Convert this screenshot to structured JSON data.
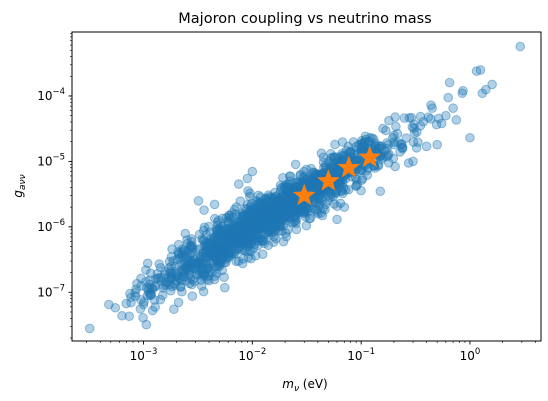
{
  "chart_data": {
    "type": "scatter",
    "title": "Majoron coupling vs neutrino mass",
    "xlabel": {
      "base": "m",
      "sub": "ν",
      "unit": " (eV)"
    },
    "ylabel": {
      "base": "g",
      "sub": "aνν"
    },
    "xscale": "log",
    "yscale": "log",
    "xlim": [
      0.00022,
      4.5
    ],
    "ylim": [
      1.8e-08,
      0.00095
    ],
    "xticks": [
      {
        "value": 0.001,
        "base": "10",
        "exp": "−3"
      },
      {
        "value": 0.01,
        "base": "10",
        "exp": "−2"
      },
      {
        "value": 0.1,
        "base": "10",
        "exp": "−1"
      },
      {
        "value": 1,
        "base": "10",
        "exp": "0"
      }
    ],
    "yticks": [
      {
        "value": 1e-07,
        "base": "10",
        "exp": "−7"
      },
      {
        "value": 1e-06,
        "base": "10",
        "exp": "−6"
      },
      {
        "value": 1e-05,
        "base": "10",
        "exp": "−5"
      },
      {
        "value": 0.0001,
        "base": "10",
        "exp": "−4"
      }
    ],
    "grid": false,
    "legend": "none",
    "series": [
      {
        "marker": "circle",
        "color": "#1f77b4",
        "opacity": 0.35,
        "trend": {
          "slope": 1.0,
          "intercept_at_x1": 0.0001,
          "log10_scatter": 0.18,
          "count": 1600,
          "x_log10_mean": -1.8,
          "x_log10_sd": 0.55
        },
        "points": [
          [
            0.00032,
            2.8e-08
          ],
          [
            0.00048,
            6.5e-08
          ],
          [
            0.00055,
            5.8e-08
          ],
          [
            0.00075,
            9.5e-08
          ],
          [
            0.00095,
            1.25e-07
          ],
          [
            0.001,
            6.5e-08
          ],
          [
            0.00105,
            2.2e-07
          ],
          [
            0.0013,
            1.6e-07
          ],
          [
            0.0015,
            9e-08
          ],
          [
            0.0016,
            1.3e-07
          ],
          [
            0.0018,
            2.5e-07
          ],
          [
            0.0019,
            5.5e-08
          ],
          [
            0.0021,
            7e-08
          ],
          [
            0.0022,
            1.2e-07
          ],
          [
            0.0024,
            4.2e-07
          ],
          [
            0.0026,
            3e-07
          ],
          [
            0.0028,
            4e-07
          ],
          [
            0.003,
            2.8e-07
          ],
          [
            0.0032,
            2.5e-06
          ],
          [
            0.0036,
            1.8e-06
          ],
          [
            0.004,
            1.5e-07
          ],
          [
            0.0045,
            2.2e-06
          ],
          [
            0.005,
            2.5e-07
          ],
          [
            0.0055,
            1.7e-07
          ],
          [
            0.006,
            3.5e-07
          ],
          [
            0.0075,
            4.5e-06
          ],
          [
            0.009,
            5.5e-06
          ],
          [
            0.01,
            7e-06
          ],
          [
            0.014,
            7.5e-07
          ],
          [
            0.02,
            3e-06
          ],
          [
            0.025,
            9e-06
          ],
          [
            0.03,
            1.6e-06
          ],
          [
            0.045,
            4.5e-06
          ],
          [
            0.05,
            1e-05
          ],
          [
            0.06,
            1.3e-06
          ],
          [
            0.07,
            2e-06
          ],
          [
            0.09,
            4.2e-06
          ],
          [
            0.1,
            1.4e-05
          ],
          [
            0.13,
            2.2e-05
          ],
          [
            0.15,
            3.5e-06
          ],
          [
            0.18,
            4.2e-05
          ],
          [
            0.2,
            2.5e-05
          ],
          [
            0.25,
            4.6e-05
          ],
          [
            0.3,
            1e-05
          ],
          [
            0.35,
            3.5e-05
          ],
          [
            0.4,
            1.7e-05
          ],
          [
            0.45,
            6.5e-05
          ],
          [
            0.5,
            1.8e-05
          ],
          [
            0.55,
            3.8e-05
          ],
          [
            0.6,
            5e-05
          ],
          [
            0.65,
            0.00016
          ],
          [
            0.7,
            6.5e-05
          ],
          [
            0.75,
            4.3e-05
          ],
          [
            0.85,
            0.00011
          ],
          [
            1.0,
            2.3e-05
          ],
          [
            1.15,
            0.00024
          ],
          [
            1.25,
            0.00025
          ],
          [
            1.3,
            0.00011
          ],
          [
            1.4,
            0.000125
          ],
          [
            1.6,
            0.00015
          ],
          [
            2.9,
            0.00057
          ]
        ]
      },
      {
        "marker": "star",
        "color": "#ff7f0e",
        "opacity": 1,
        "points": [
          [
            0.03,
            3e-06
          ],
          [
            0.05,
            5e-06
          ],
          [
            0.077,
            8e-06
          ],
          [
            0.12,
            1.15e-05
          ]
        ]
      }
    ]
  }
}
